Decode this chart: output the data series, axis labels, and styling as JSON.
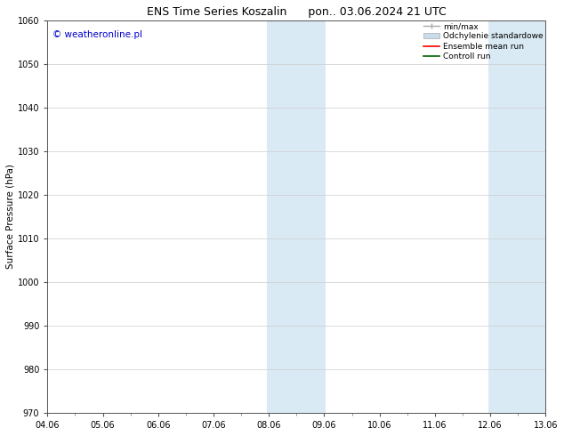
{
  "title_left": "ENS Time Series Koszalin",
  "title_right": "pon.. 03.06.2024 21 UTC",
  "ylabel": "Surface Pressure (hPa)",
  "ylim": [
    970,
    1060
  ],
  "yticks": [
    970,
    980,
    990,
    1000,
    1010,
    1020,
    1030,
    1040,
    1050,
    1060
  ],
  "xtick_labels": [
    "04.06",
    "05.06",
    "06.06",
    "07.06",
    "08.06",
    "09.06",
    "10.06",
    "11.06",
    "12.06",
    "13.06"
  ],
  "xtick_positions": [
    0,
    1,
    2,
    3,
    4,
    5,
    6,
    7,
    8,
    9
  ],
  "xlim": [
    0,
    9
  ],
  "shaded_regions": [
    {
      "xstart": 3.97,
      "xend": 4.5,
      "color": "#daeaf5"
    },
    {
      "xstart": 4.5,
      "xend": 5.03,
      "color": "#daeaf5"
    },
    {
      "xstart": 7.97,
      "xend": 8.5,
      "color": "#daeaf5"
    },
    {
      "xstart": 8.5,
      "xend": 9.03,
      "color": "#daeaf5"
    }
  ],
  "watermark": "© weatheronline.pl",
  "watermark_color": "#0000cc",
  "legend_labels": [
    "min/max",
    "Odchylenie standardowe",
    "Ensemble mean run",
    "Controll run"
  ],
  "legend_line_colors": [
    "#aaaaaa",
    "#c8dcea",
    "#ff0000",
    "#006400"
  ],
  "background_color": "#ffffff",
  "grid_color": "#cccccc",
  "title_fontsize": 9,
  "axis_label_fontsize": 7.5,
  "tick_fontsize": 7
}
